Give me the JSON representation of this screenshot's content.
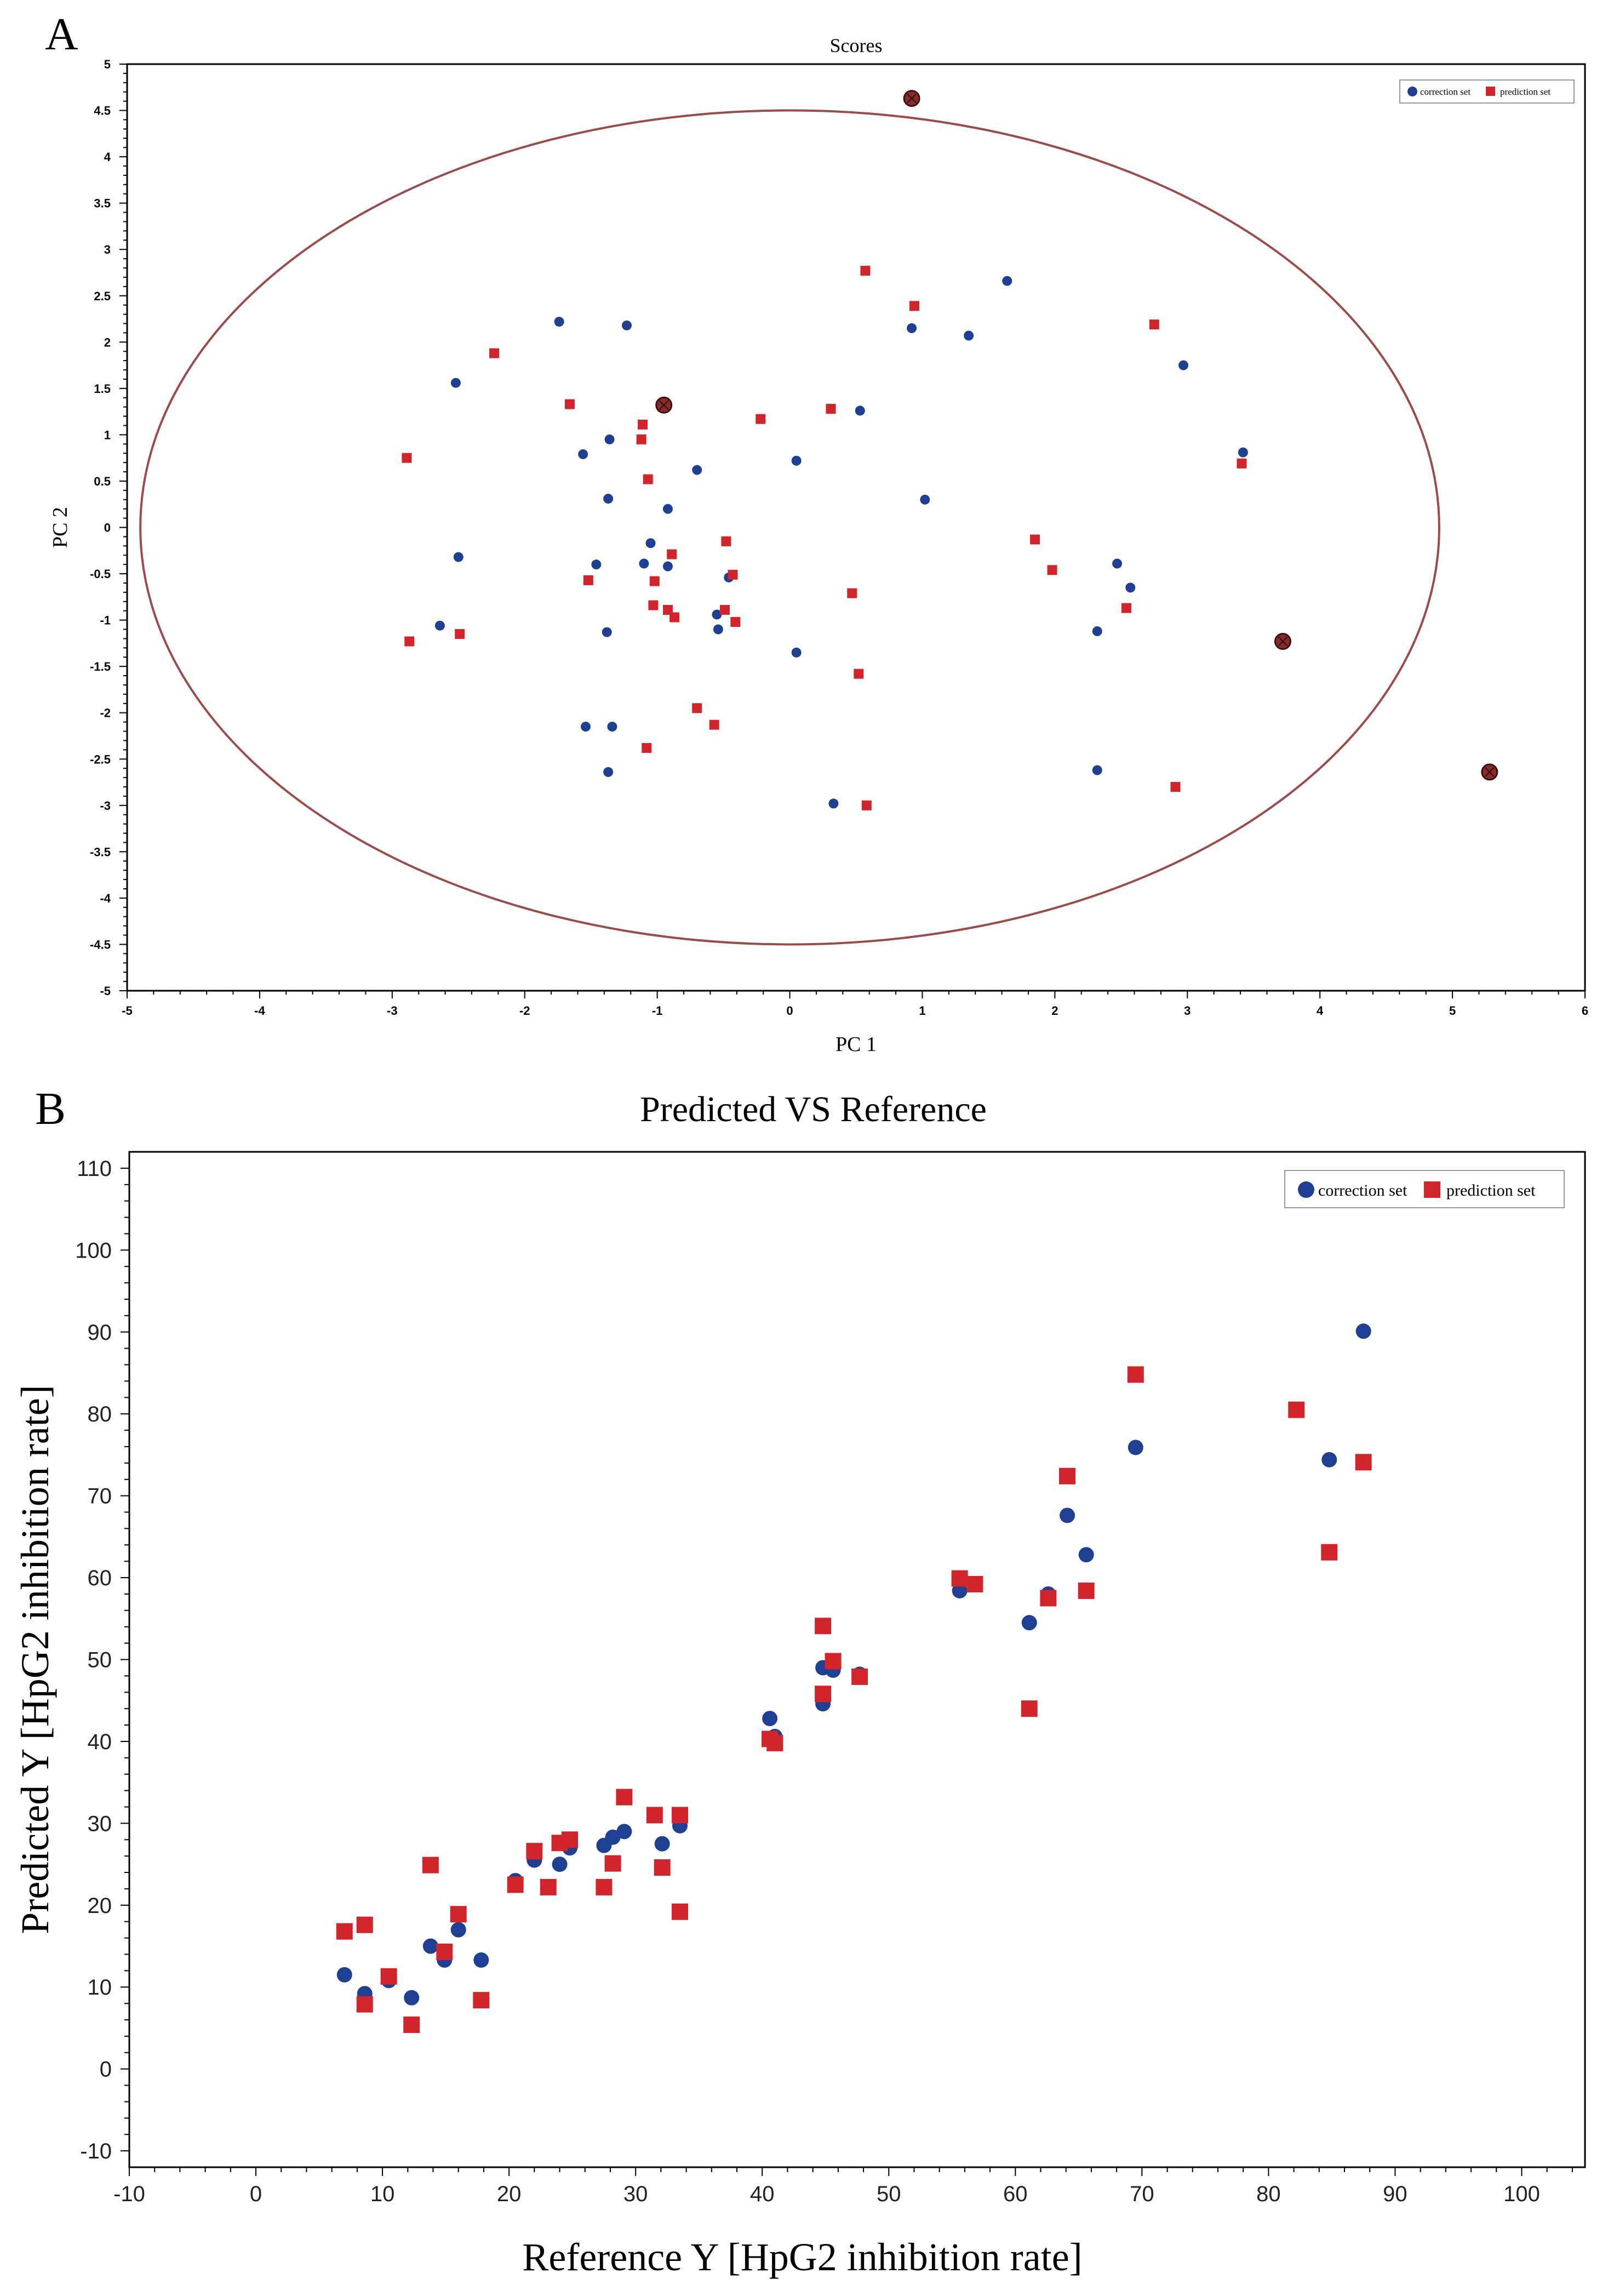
{
  "panels": {
    "a_letter": "A",
    "b_letter": "B"
  },
  "colors": {
    "correction": "#1f3f93",
    "prediction": "#d1242b",
    "ellipse": "#9c4b4b",
    "outlier": "#8b2a2a"
  },
  "chart_data": [
    {
      "type": "scatter",
      "title": "Scores",
      "xlabel": "PC 1",
      "ylabel": "PC 2",
      "xlim": [
        -5,
        6
      ],
      "ylim": [
        -5,
        5
      ],
      "xticks": [
        "-5",
        "-4",
        "-3",
        "-2",
        "-1",
        "0",
        "1",
        "2",
        "3",
        "4",
        "5",
        "6"
      ],
      "yticks": [
        "5",
        "4.5",
        "4",
        "3.5",
        "3",
        "2.5",
        "2",
        "1.5",
        "1",
        "0.5",
        "0",
        "-0.5",
        "-1",
        "-1.5",
        "-2",
        "-2.5",
        "-3",
        "-3.5",
        "-4",
        "-4.5",
        "-5"
      ],
      "legend": [
        "correction set",
        "prediction set"
      ],
      "confidence_ellipse": {
        "center": [
          0,
          0
        ],
        "rx": 4.9,
        "ry": 4.5
      },
      "series": [
        {
          "name": "correction set",
          "marker": "circle",
          "points": [
            [
              -1.74,
              2.22
            ],
            [
              -1.23,
              2.18
            ],
            [
              -2.52,
              1.56
            ],
            [
              -1.56,
              0.79
            ],
            [
              -1.36,
              0.95
            ],
            [
              -1.37,
              0.31
            ],
            [
              -0.7,
              0.62
            ],
            [
              -1.05,
              -0.17
            ],
            [
              -0.92,
              0.2
            ],
            [
              -1.1,
              -0.39
            ],
            [
              -0.92,
              -0.42
            ],
            [
              -1.46,
              -0.4
            ],
            [
              -2.5,
              -0.32
            ],
            [
              -2.64,
              -1.06
            ],
            [
              -1.38,
              -1.13
            ],
            [
              -0.46,
              -0.54
            ],
            [
              -0.55,
              -0.94
            ],
            [
              -0.54,
              -1.1
            ],
            [
              0.05,
              0.72
            ],
            [
              0.53,
              1.26
            ],
            [
              0.92,
              2.15
            ],
            [
              1.35,
              2.07
            ],
            [
              1.64,
              2.66
            ],
            [
              1.02,
              0.3
            ],
            [
              2.97,
              1.75
            ],
            [
              3.42,
              0.81
            ],
            [
              2.47,
              -0.39
            ],
            [
              2.57,
              -0.65
            ],
            [
              2.32,
              -1.12
            ],
            [
              0.05,
              -1.35
            ],
            [
              2.32,
              -2.62
            ],
            [
              -1.54,
              -2.15
            ],
            [
              -1.34,
              -2.15
            ],
            [
              -1.37,
              -2.64
            ],
            [
              0.33,
              -2.98
            ]
          ]
        },
        {
          "name": "prediction set",
          "marker": "square",
          "points": [
            [
              -2.89,
              0.75
            ],
            [
              -2.87,
              -1.23
            ],
            [
              -2.49,
              -1.15
            ],
            [
              -2.23,
              1.88
            ],
            [
              -1.66,
              1.33
            ],
            [
              -1.11,
              1.11
            ],
            [
              -1.12,
              0.95
            ],
            [
              -1.07,
              0.52
            ],
            [
              -1.52,
              -0.57
            ],
            [
              -1.02,
              -0.58
            ],
            [
              -1.03,
              -0.84
            ],
            [
              -0.92,
              -0.89
            ],
            [
              -0.87,
              -0.97
            ],
            [
              -0.89,
              -0.29
            ],
            [
              -0.48,
              -0.15
            ],
            [
              -0.43,
              -0.51
            ],
            [
              -0.49,
              -0.89
            ],
            [
              -0.41,
              -1.02
            ],
            [
              -0.22,
              1.17
            ],
            [
              0.31,
              1.28
            ],
            [
              0.57,
              2.77
            ],
            [
              0.94,
              2.39
            ],
            [
              0.47,
              -0.71
            ],
            [
              0.52,
              -1.58
            ],
            [
              -0.7,
              -1.95
            ],
            [
              -0.57,
              -2.13
            ],
            [
              -1.08,
              -2.38
            ],
            [
              0.58,
              -3.0
            ],
            [
              1.85,
              -0.13
            ],
            [
              1.98,
              -0.46
            ],
            [
              2.75,
              2.19
            ],
            [
              3.41,
              0.69
            ],
            [
              2.54,
              -0.87
            ],
            [
              2.91,
              -2.8
            ]
          ]
        },
        {
          "name": "outliers",
          "marker": "ringed",
          "points": [
            [
              0.92,
              4.63
            ],
            [
              -0.95,
              1.32
            ],
            [
              3.72,
              -1.23
            ],
            [
              5.28,
              -2.64
            ]
          ]
        }
      ]
    },
    {
      "type": "scatter",
      "title": "Predicted  VS  Reference",
      "xlabel": "Reference Y [HpG2 inhibition rate]",
      "ylabel": "Predicted Y [HpG2 inhibition rate]",
      "xlim": [
        -10,
        105
      ],
      "ylim": [
        -12,
        112
      ],
      "xticks": [
        "-10",
        "0",
        "10",
        "20",
        "30",
        "40",
        "50",
        "60",
        "70",
        "80",
        "90",
        "100"
      ],
      "yticks": [
        "110",
        "100",
        "90",
        "80",
        "70",
        "60",
        "50",
        "40",
        "30",
        "20",
        "10",
        "0",
        "-10"
      ],
      "legend": [
        "correction set",
        "prediction set"
      ],
      "series": [
        {
          "name": "correction set",
          "marker": "circle",
          "points": [
            [
              7,
              11.5
            ],
            [
              8.6,
              9.2
            ],
            [
              10.5,
              10.8
            ],
            [
              12.3,
              8.7
            ],
            [
              13.8,
              15
            ],
            [
              14.9,
              13.3
            ],
            [
              16,
              17
            ],
            [
              17.8,
              13.3
            ],
            [
              20.5,
              23
            ],
            [
              22,
              25.5
            ],
            [
              24,
              25
            ],
            [
              24.8,
              27
            ],
            [
              27.5,
              27.3
            ],
            [
              28.2,
              28.3
            ],
            [
              29.1,
              29
            ],
            [
              32.1,
              27.5
            ],
            [
              33.5,
              29.7
            ],
            [
              40.6,
              42.8
            ],
            [
              41,
              40.6
            ],
            [
              44.8,
              44.6
            ],
            [
              44.8,
              49
            ],
            [
              45.6,
              48.7
            ],
            [
              47.7,
              48.2
            ],
            [
              55.6,
              58.4
            ],
            [
              56.8,
              59.2
            ],
            [
              61.1,
              54.5
            ],
            [
              62.6,
              58
            ],
            [
              64.1,
              67.6
            ],
            [
              65.6,
              62.8
            ],
            [
              69.5,
              75.9
            ],
            [
              84.8,
              74.4
            ],
            [
              87.5,
              90.1
            ]
          ]
        },
        {
          "name": "prediction set",
          "marker": "square",
          "points": [
            [
              7,
              16.8
            ],
            [
              8.6,
              17.6
            ],
            [
              8.6,
              7.9
            ],
            [
              10.5,
              11.3
            ],
            [
              12.3,
              5.4
            ],
            [
              13.8,
              24.9
            ],
            [
              14.9,
              14.3
            ],
            [
              16,
              18.9
            ],
            [
              17.8,
              8.4
            ],
            [
              20.5,
              22.5
            ],
            [
              22,
              26.6
            ],
            [
              23.1,
              22.2
            ],
            [
              24,
              27.6
            ],
            [
              24.8,
              28
            ],
            [
              27.5,
              22.2
            ],
            [
              28.2,
              25.1
            ],
            [
              29.1,
              33.2
            ],
            [
              31.5,
              31
            ],
            [
              32.1,
              24.6
            ],
            [
              33.5,
              31
            ],
            [
              33.5,
              19.2
            ],
            [
              40.6,
              40.3
            ],
            [
              41,
              39.8
            ],
            [
              44.8,
              54.1
            ],
            [
              44.8,
              45.8
            ],
            [
              45.6,
              49.8
            ],
            [
              47.7,
              47.9
            ],
            [
              55.6,
              59.9
            ],
            [
              56.8,
              59.2
            ],
            [
              61.1,
              44
            ],
            [
              62.6,
              57.5
            ],
            [
              64.1,
              72.4
            ],
            [
              65.6,
              58.4
            ],
            [
              69.5,
              84.8
            ],
            [
              82.2,
              80.5
            ],
            [
              84.8,
              63.1
            ],
            [
              87.5,
              74.1
            ]
          ]
        }
      ]
    }
  ]
}
